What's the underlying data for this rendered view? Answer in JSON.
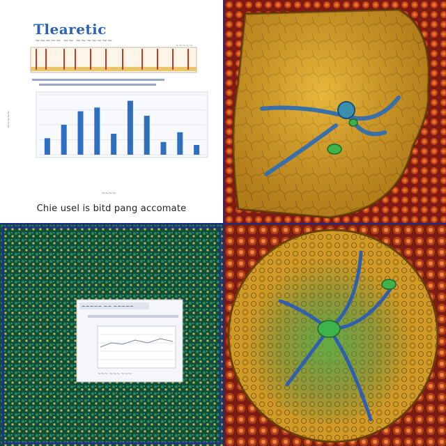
{
  "panels": {
    "top_left": {
      "title": "Tlearetic",
      "caption": "Chie usel is bitd pang accomate"
    },
    "top_right": {
      "kind": "anatomical-illustration"
    },
    "bottom_left": {
      "kind": "textured-background-with-inset-chart"
    },
    "bottom_right": {
      "kind": "anatomical-illustration"
    }
  },
  "chart_data": {
    "type": "bar",
    "values": [
      22,
      40,
      58,
      63,
      28,
      72,
      52,
      17,
      30,
      13
    ],
    "ylim": [
      0,
      80
    ]
  },
  "colors": {
    "frame": "#1f2a86",
    "bar": "#2f6fc0",
    "organ_gold": "#d49a22",
    "organ_dark": "#8a5a10",
    "vessel_blue": "#3a6fa8",
    "vessel_green": "#3fb24a",
    "tissue_red": "#8b1e14",
    "mosaic_green": "#1f6b46"
  }
}
